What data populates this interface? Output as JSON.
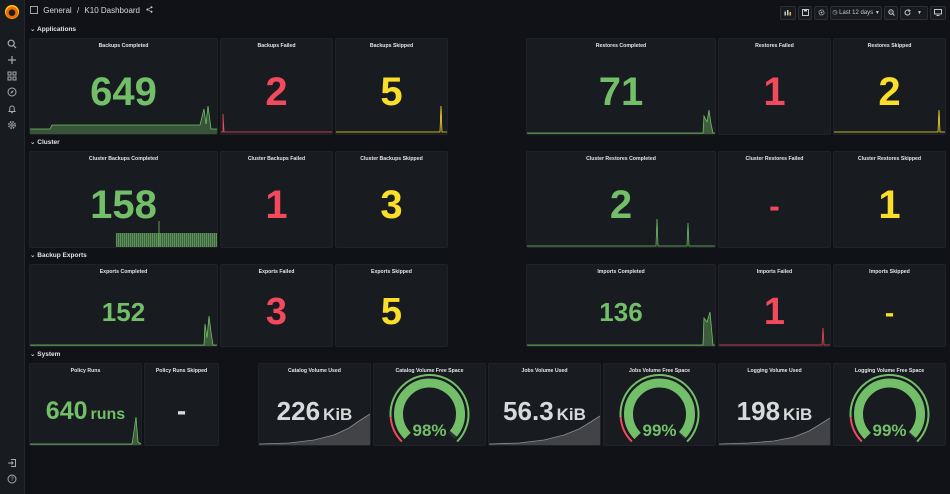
{
  "breadcrumb": {
    "folder": "General",
    "separator": "/",
    "dashboard": "K10 Dashboard"
  },
  "toolbar": {
    "time_range": "Last 12 days"
  },
  "icons": {
    "sidebar": [
      "search-icon",
      "plus-icon",
      "dashboards-icon",
      "explore-icon",
      "alerting-icon",
      "gear-icon"
    ],
    "sidebar_bottom": [
      "sign-in-icon",
      "help-icon"
    ]
  },
  "rows": {
    "applications": "Applications",
    "cluster": "Cluster",
    "backup_exports": "Backup Exports",
    "system": "System"
  },
  "panels": {
    "backups_completed": {
      "title": "Backups Completed",
      "value": "649"
    },
    "backups_failed": {
      "title": "Backups Failed",
      "value": "2"
    },
    "backups_skipped": {
      "title": "Backups Skipped",
      "value": "5"
    },
    "restores_completed": {
      "title": "Restores Completed",
      "value": "71"
    },
    "restores_failed": {
      "title": "Restores Failed",
      "value": "1"
    },
    "restores_skipped": {
      "title": "Restores Skipped",
      "value": "2"
    },
    "cluster_backups_completed": {
      "title": "Cluster Backups Completed",
      "value": "158"
    },
    "cluster_backups_failed": {
      "title": "Cluster Backups Failed",
      "value": "1"
    },
    "cluster_backups_skipped": {
      "title": "Cluster Backups Skipped",
      "value": "3"
    },
    "cluster_restores_completed": {
      "title": "Cluster Restores Completed",
      "value": "2"
    },
    "cluster_restores_failed": {
      "title": "Cluster Restores Failed",
      "value": "-"
    },
    "cluster_restores_skipped": {
      "title": "Cluster Restores Skipped",
      "value": "1"
    },
    "exports_completed": {
      "title": "Exports Completed",
      "value": "152"
    },
    "exports_failed": {
      "title": "Exports Failed",
      "value": "3"
    },
    "exports_skipped": {
      "title": "Exports Skipped",
      "value": "5"
    },
    "imports_completed": {
      "title": "Imports Completed",
      "value": "136"
    },
    "imports_failed": {
      "title": "Imports Failed",
      "value": "1"
    },
    "imports_skipped": {
      "title": "Imports Skipped",
      "value": "-"
    },
    "policy_runs": {
      "title": "Policy Runs",
      "value": "640",
      "unit": "runs"
    },
    "policy_runs_skipped": {
      "title": "Policy Runs Skipped",
      "value": "-"
    },
    "catalog_volume_used": {
      "title": "Catalog Volume Used",
      "value": "226",
      "unit": "KiB"
    },
    "catalog_volume_free": {
      "title": "Catalog Volume Free Space",
      "value": "98%",
      "percent": 98
    },
    "jobs_volume_used": {
      "title": "Jobs Volume Used",
      "value": "56.3",
      "unit": "KiB"
    },
    "jobs_volume_free": {
      "title": "Jobs Volume Free Space",
      "value": "99%",
      "percent": 99
    },
    "logging_volume_used": {
      "title": "Logging Volume Used",
      "value": "198",
      "unit": "KiB"
    },
    "logging_volume_free": {
      "title": "Logging Volume Free Space",
      "value": "99%",
      "percent": 99
    }
  },
  "colors": {
    "ok": "#73bf69",
    "error": "#f2495c",
    "warn": "#fade2a",
    "text": "#d8d9da"
  }
}
